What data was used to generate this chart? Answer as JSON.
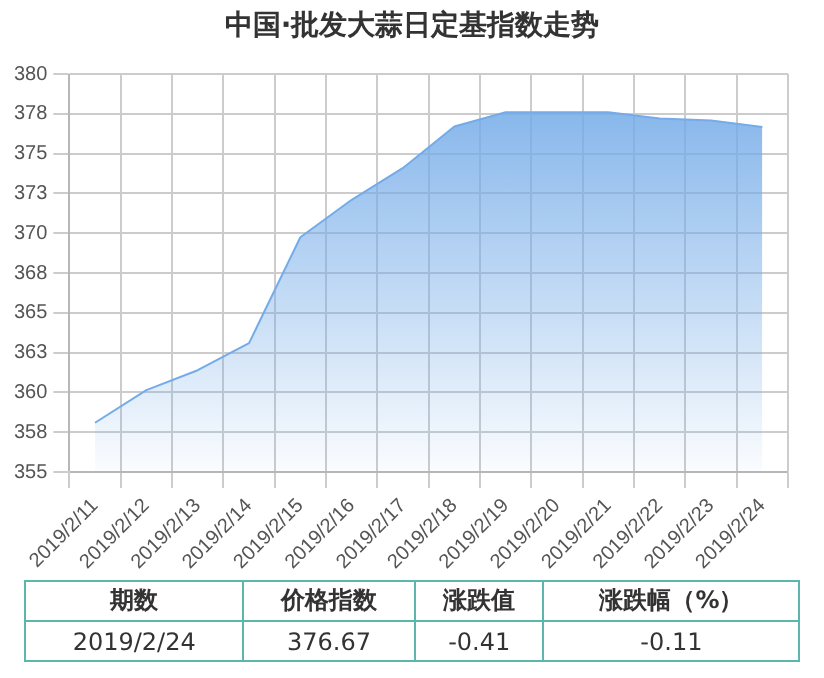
{
  "chart_data": {
    "type": "area",
    "title": "中国·批发大蒜日定基指数走势",
    "categories": [
      "2019/2/11",
      "2019/2/12",
      "2019/2/13",
      "2019/2/14",
      "2019/2/15",
      "2019/2/16",
      "2019/2/17",
      "2019/2/18",
      "2019/2/19",
      "2019/2/20",
      "2019/2/21",
      "2019/2/22",
      "2019/2/23",
      "2019/2/24"
    ],
    "series": [
      {
        "color": "#74abe8",
        "values": [
          358.1,
          360.15,
          361.4,
          363.1,
          369.75,
          372.1,
          374.1,
          376.7,
          377.6,
          377.6,
          377.6,
          377.2,
          377.08,
          376.67
        ]
      }
    ],
    "ylim": [
      355,
      380
    ],
    "yticks": [
      355,
      {
        "value": 357.5,
        "label": "358"
      },
      360,
      {
        "value": 362.5,
        "label": "363"
      },
      365,
      {
        "value": 367.5,
        "label": "368"
      },
      370,
      {
        "value": 372.5,
        "label": "373"
      },
      375,
      {
        "value": 377.5,
        "label": "378"
      },
      380
    ],
    "grid": true,
    "legend": false,
    "annotations": [
      "期数",
      "价格指数",
      "涨跌值",
      "涨跌幅（%）",
      "2019/2/24",
      "376.67",
      "-0.41",
      "-0.11"
    ]
  }
}
